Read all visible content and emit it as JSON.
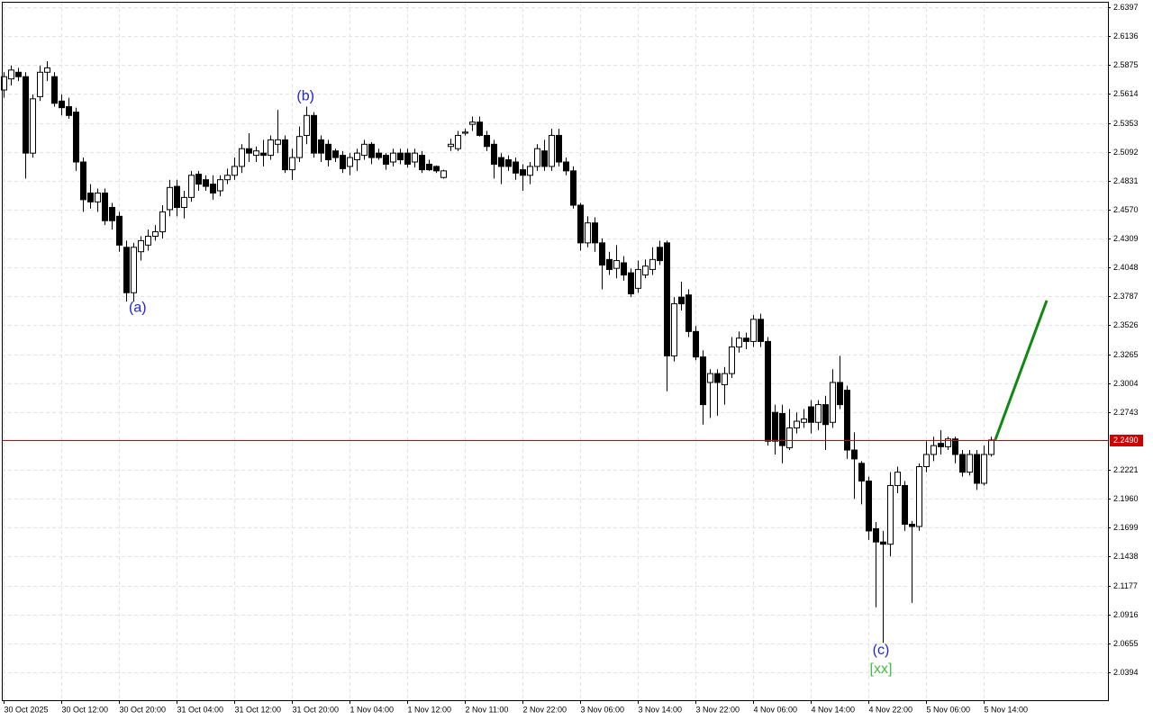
{
  "chart_data": {
    "type": "candlestick",
    "categories": [
      "30 Oct 2025",
      null,
      null,
      null,
      null,
      null,
      null,
      null,
      "30 Oct 12:00",
      null,
      null,
      null,
      null,
      null,
      null,
      null,
      "30 Oct 20:00",
      null,
      null,
      null,
      null,
      null,
      null,
      null,
      "31 Oct 04:00",
      null,
      null,
      null,
      null,
      null,
      null,
      null,
      "31 Oct 12:00",
      null,
      null,
      null,
      null,
      null,
      null,
      null,
      "31 Oct 20:00",
      null,
      null,
      null,
      null,
      null,
      null,
      null,
      "1 Nov 04:00",
      null,
      null,
      null,
      null,
      null,
      null,
      null,
      "1 Nov 12:00",
      null,
      null,
      null,
      null,
      null,
      null,
      null,
      "2 Nov 11:00",
      null,
      null,
      null,
      null,
      null,
      null,
      null,
      "2 Nov 22:00",
      null,
      null,
      null,
      null,
      null,
      null,
      null,
      "3 Nov 06:00",
      null,
      null,
      null,
      null,
      null,
      null,
      null,
      "3 Nov 14:00",
      null,
      null,
      null,
      null,
      null,
      null,
      null,
      "3 Nov 22:00",
      null,
      null,
      null,
      null,
      null,
      null,
      null,
      "4 Nov 06:00",
      null,
      null,
      null,
      null,
      null,
      null,
      null,
      "4 Nov 14:00",
      null,
      null,
      null,
      null,
      null,
      null,
      null,
      "4 Nov 22:00",
      null,
      null,
      null,
      null,
      null,
      null,
      null,
      "5 Nov 06:00",
      null,
      null,
      null,
      null,
      null,
      null,
      null,
      "5 Nov 14:00",
      null
    ],
    "open": [
      2.565,
      2.575,
      2.581,
      2.577,
      2.508,
      2.559,
      2.581,
      2.577,
      2.555,
      2.55,
      2.545,
      2.5,
      2.472,
      2.464,
      2.472,
      2.459,
      2.451,
      2.423,
      2.382,
      2.419,
      2.425,
      2.433,
      2.437,
      2.457,
      2.478,
      2.459,
      2.468,
      2.489,
      2.484,
      2.48,
      2.474,
      2.484,
      2.488,
      2.496,
      2.512,
      2.506,
      2.508,
      2.506,
      2.516,
      2.52,
      2.493,
      2.504,
      2.524,
      2.542,
      2.52,
      2.516,
      2.51,
      2.506,
      2.496,
      2.502,
      2.506,
      2.516,
      2.508,
      2.506,
      2.5,
      2.508,
      2.508,
      2.5,
      2.506,
      2.498,
      2.496,
      2.486,
      2.514,
      2.512,
      2.526,
      2.534,
      2.536,
      2.524,
      2.516,
      2.504,
      2.502,
      2.5,
      2.493,
      2.488,
      2.496,
      2.51,
      2.496,
      2.524,
      2.5,
      2.492,
      2.461,
      2.427,
      2.445,
      2.427,
      2.412,
      2.404,
      2.409,
      2.4,
      2.386,
      2.398,
      2.403,
      2.423,
      2.427,
      2.325,
      2.378,
      2.38,
      2.347,
      2.324,
      2.301,
      2.309,
      2.299,
      2.309,
      2.333,
      2.341,
      2.338,
      2.358,
      2.338,
      2.274,
      2.273,
      2.242,
      2.26,
      2.265,
      2.279,
      2.265,
      2.281,
      2.265,
      2.301,
      2.294,
      2.24,
      2.228,
      2.212,
      2.169,
      2.157,
      2.155,
      2.208,
      2.208,
      2.173,
      2.171,
      2.225,
      2.236,
      2.246,
      2.243,
      2.25,
      2.236,
      2.22,
      2.236,
      2.21,
      2.236
    ],
    "high": [
      2.581,
      2.587,
      2.585,
      2.581,
      2.561,
      2.587,
      2.591,
      2.581,
      2.561,
      2.558,
      2.549,
      2.504,
      2.48,
      2.476,
      2.476,
      2.463,
      2.455,
      2.429,
      2.427,
      2.433,
      2.439,
      2.443,
      2.461,
      2.484,
      2.484,
      2.474,
      2.492,
      2.492,
      2.488,
      2.488,
      2.488,
      2.494,
      2.504,
      2.516,
      2.526,
      2.514,
      2.52,
      2.524,
      2.547,
      2.524,
      2.512,
      2.532,
      2.55,
      2.545,
      2.524,
      2.52,
      2.512,
      2.51,
      2.508,
      2.512,
      2.52,
      2.518,
      2.512,
      2.508,
      2.512,
      2.512,
      2.512,
      2.512,
      2.51,
      2.502,
      2.497,
      2.493,
      2.521,
      2.528,
      2.53,
      2.541,
      2.541,
      2.528,
      2.52,
      2.508,
      2.506,
      2.504,
      2.498,
      2.5,
      2.516,
      2.52,
      2.53,
      2.53,
      2.504,
      2.496,
      2.463,
      2.451,
      2.45,
      2.431,
      2.419,
      2.425,
      2.415,
      2.404,
      2.411,
      2.412,
      2.423,
      2.429,
      2.429,
      2.378,
      2.392,
      2.385,
      2.352,
      2.33,
      2.313,
      2.313,
      2.315,
      2.342,
      2.347,
      2.346,
      2.362,
      2.363,
      2.342,
      2.281,
      2.281,
      2.277,
      2.274,
      2.277,
      2.285,
      2.285,
      2.289,
      2.313,
      2.325,
      2.298,
      2.256,
      2.23,
      2.216,
      2.175,
      2.167,
      2.22,
      2.225,
      2.212,
      2.176,
      2.228,
      2.248,
      2.252,
      2.258,
      2.252,
      2.252,
      2.24,
      2.24,
      2.24,
      2.244,
      2.252
    ],
    "low": [
      2.558,
      2.569,
      2.573,
      2.485,
      2.504,
      2.555,
      2.573,
      2.55,
      2.542,
      2.539,
      2.492,
      2.455,
      2.458,
      2.455,
      2.443,
      2.439,
      2.419,
      2.374,
      2.374,
      2.411,
      2.42,
      2.429,
      2.431,
      2.451,
      2.451,
      2.449,
      2.464,
      2.474,
      2.474,
      2.466,
      2.469,
      2.48,
      2.484,
      2.49,
      2.5,
      2.5,
      2.496,
      2.502,
      2.508,
      2.49,
      2.484,
      2.5,
      2.516,
      2.504,
      2.5,
      2.496,
      2.5,
      2.49,
      2.488,
      2.492,
      2.502,
      2.498,
      2.502,
      2.493,
      2.496,
      2.498,
      2.495,
      2.495,
      2.49,
      2.492,
      2.49,
      2.485,
      2.51,
      2.51,
      2.524,
      2.528,
      2.523,
      2.51,
      2.485,
      2.48,
      2.492,
      2.484,
      2.474,
      2.48,
      2.492,
      2.492,
      2.492,
      2.496,
      2.488,
      2.458,
      2.42,
      2.423,
      2.419,
      2.385,
      2.398,
      2.395,
      2.393,
      2.378,
      2.382,
      2.395,
      2.398,
      2.407,
      2.293,
      2.32,
      2.366,
      2.342,
      2.321,
      2.263,
      2.269,
      2.271,
      2.281,
      2.305,
      2.328,
      2.331,
      2.333,
      2.333,
      2.244,
      2.236,
      2.228,
      2.24,
      2.255,
      2.26,
      2.255,
      2.258,
      2.24,
      2.26,
      2.277,
      2.232,
      2.196,
      2.191,
      2.159,
      2.098,
      2.066,
      2.144,
      2.201,
      2.167,
      2.102,
      2.167,
      2.22,
      2.23,
      2.236,
      2.24,
      2.228,
      2.216,
      2.217,
      2.204,
      2.208,
      2.234
    ],
    "close": [
      2.577,
      2.583,
      2.577,
      2.508,
      2.557,
      2.581,
      2.585,
      2.553,
      2.549,
      2.542,
      2.5,
      2.466,
      2.464,
      2.472,
      2.447,
      2.447,
      2.425,
      2.382,
      2.423,
      2.429,
      2.433,
      2.437,
      2.455,
      2.477,
      2.459,
      2.468,
      2.488,
      2.48,
      2.478,
      2.472,
      2.484,
      2.488,
      2.496,
      2.512,
      2.508,
      2.51,
      2.506,
      2.52,
      2.52,
      2.493,
      2.504,
      2.523,
      2.542,
      2.508,
      2.508,
      2.502,
      2.504,
      2.494,
      2.504,
      2.508,
      2.516,
      2.504,
      2.504,
      2.498,
      2.508,
      2.502,
      2.498,
      2.508,
      2.493,
      2.493,
      2.492,
      2.492,
      2.516,
      2.524,
      2.527,
      2.536,
      2.524,
      2.514,
      2.498,
      2.496,
      2.496,
      2.49,
      2.488,
      2.496,
      2.512,
      2.496,
      2.524,
      2.5,
      2.492,
      2.461,
      2.427,
      2.445,
      2.427,
      2.407,
      2.403,
      2.411,
      2.398,
      2.381,
      2.403,
      2.406,
      2.412,
      2.411,
      2.325,
      2.372,
      2.372,
      2.347,
      2.324,
      2.281,
      2.309,
      2.301,
      2.309,
      2.333,
      2.341,
      2.338,
      2.358,
      2.338,
      2.248,
      2.248,
      2.244,
      2.26,
      2.266,
      2.268,
      2.265,
      2.281,
      2.263,
      2.301,
      2.281,
      2.24,
      2.232,
      2.212,
      2.167,
      2.157,
      2.155,
      2.208,
      2.22,
      2.173,
      2.171,
      2.225,
      2.236,
      2.244,
      2.243,
      2.25,
      2.236,
      2.22,
      2.236,
      2.21,
      2.236,
      2.249
    ],
    "up_color": "#ffffff",
    "down_color": "#000000",
    "ylim": [
      2.0142,
      2.6446
    ],
    "yticks": [
      2.6397,
      2.6136,
      2.5875,
      2.5614,
      2.5353,
      2.5092,
      2.4831,
      {
        "value": 2.457,
        "label": "2.4570"
      },
      2.4309,
      2.4048,
      2.3787,
      2.3526,
      2.3265,
      2.3004,
      2.2743,
      2.2221,
      {
        "value": 2.196,
        "label": "2.1960"
      },
      2.1699,
      2.1438,
      2.1177,
      2.0916,
      2.0655,
      2.0394
    ],
    "grid": true,
    "price_line": {
      "value": 2.249,
      "label": "2.2490",
      "color": "#cc0000"
    },
    "forecast": {
      "x": [
        137.6,
        144.75
      ],
      "values": [
        2.249,
        2.375
      ],
      "color": "#118811"
    },
    "annotations": [
      {
        "text": "(a)",
        "x": 18.6,
        "y": 2.368,
        "color": "#2222dd"
      },
      {
        "text": "(b)",
        "x": 41.9,
        "y": 2.559,
        "color": "#2222dd"
      },
      {
        "text": "(c)",
        "x": 121.75,
        "y": 2.059,
        "color": "#2222dd"
      },
      {
        "text": "[xx]",
        "x": 121.75,
        "y": 2.042,
        "color": "#44bb44"
      }
    ]
  }
}
